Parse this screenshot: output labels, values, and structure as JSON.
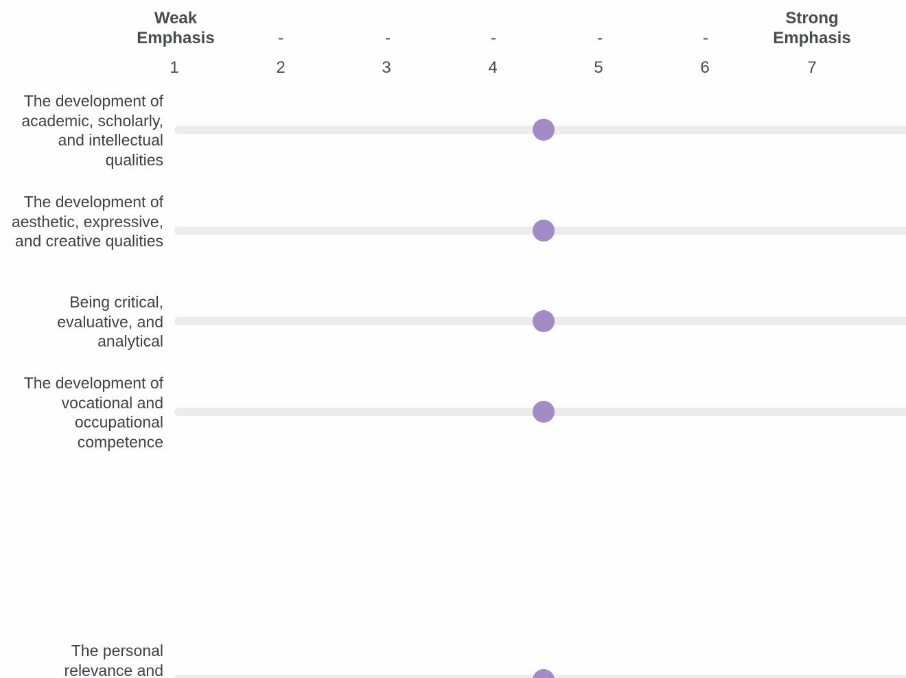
{
  "scale": {
    "left_anchor": "Weak Emphasis",
    "right_anchor": "Strong Emphasis",
    "middle_dashes": [
      "-",
      "-",
      "-",
      "-",
      "-"
    ],
    "ticks": [
      "1",
      "2",
      "3",
      "4",
      "5",
      "6",
      "7"
    ],
    "min": 1,
    "max": 7
  },
  "accent_color": "#a38bc6",
  "track_color": "#ececec",
  "statements": [
    {
      "label": "The development of academic, scholarly, and intellectual qualities",
      "value": 4.48
    },
    {
      "label": "The development of aesthetic, expressive, and creative qualities",
      "value": 4.48
    },
    {
      "label": "Being critical, evaluative, and analytical",
      "value": 4.48
    },
    {
      "label": "The development of vocational and occupational competence",
      "value": 4.48
    },
    {
      "label": "The personal relevance and",
      "value": 4.48
    }
  ]
}
